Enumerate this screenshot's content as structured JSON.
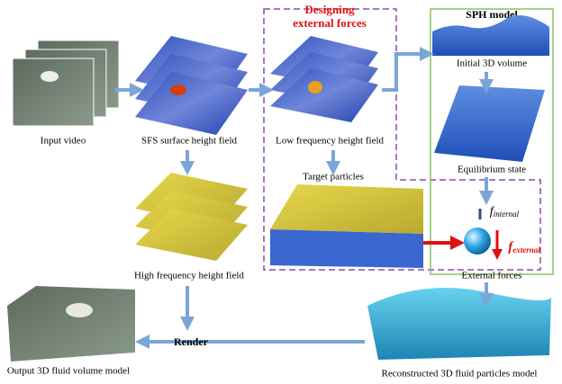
{
  "header": {
    "title_lines": [
      "Designing",
      "external forces"
    ],
    "sph_title": "SPH model"
  },
  "nodes": [
    {
      "label": "Input video"
    },
    {
      "label": "SFS surface height field"
    },
    {
      "label": "Low frequency height field"
    },
    {
      "label": "Initial 3D volume"
    },
    {
      "label": "Equilibrium state"
    },
    {
      "label": "Target particles"
    },
    {
      "label": "High frequency height field"
    },
    {
      "label": "External forces"
    },
    {
      "label": "Output 3D fluid volume model"
    },
    {
      "label": "Reconstructed 3D fluid particles model"
    }
  ],
  "edges": [
    {
      "label": "Render"
    }
  ],
  "forces": {
    "internal": {
      "symbol": "f",
      "subscript": "internal"
    },
    "external": {
      "symbol": "f",
      "subscript": "external"
    }
  }
}
